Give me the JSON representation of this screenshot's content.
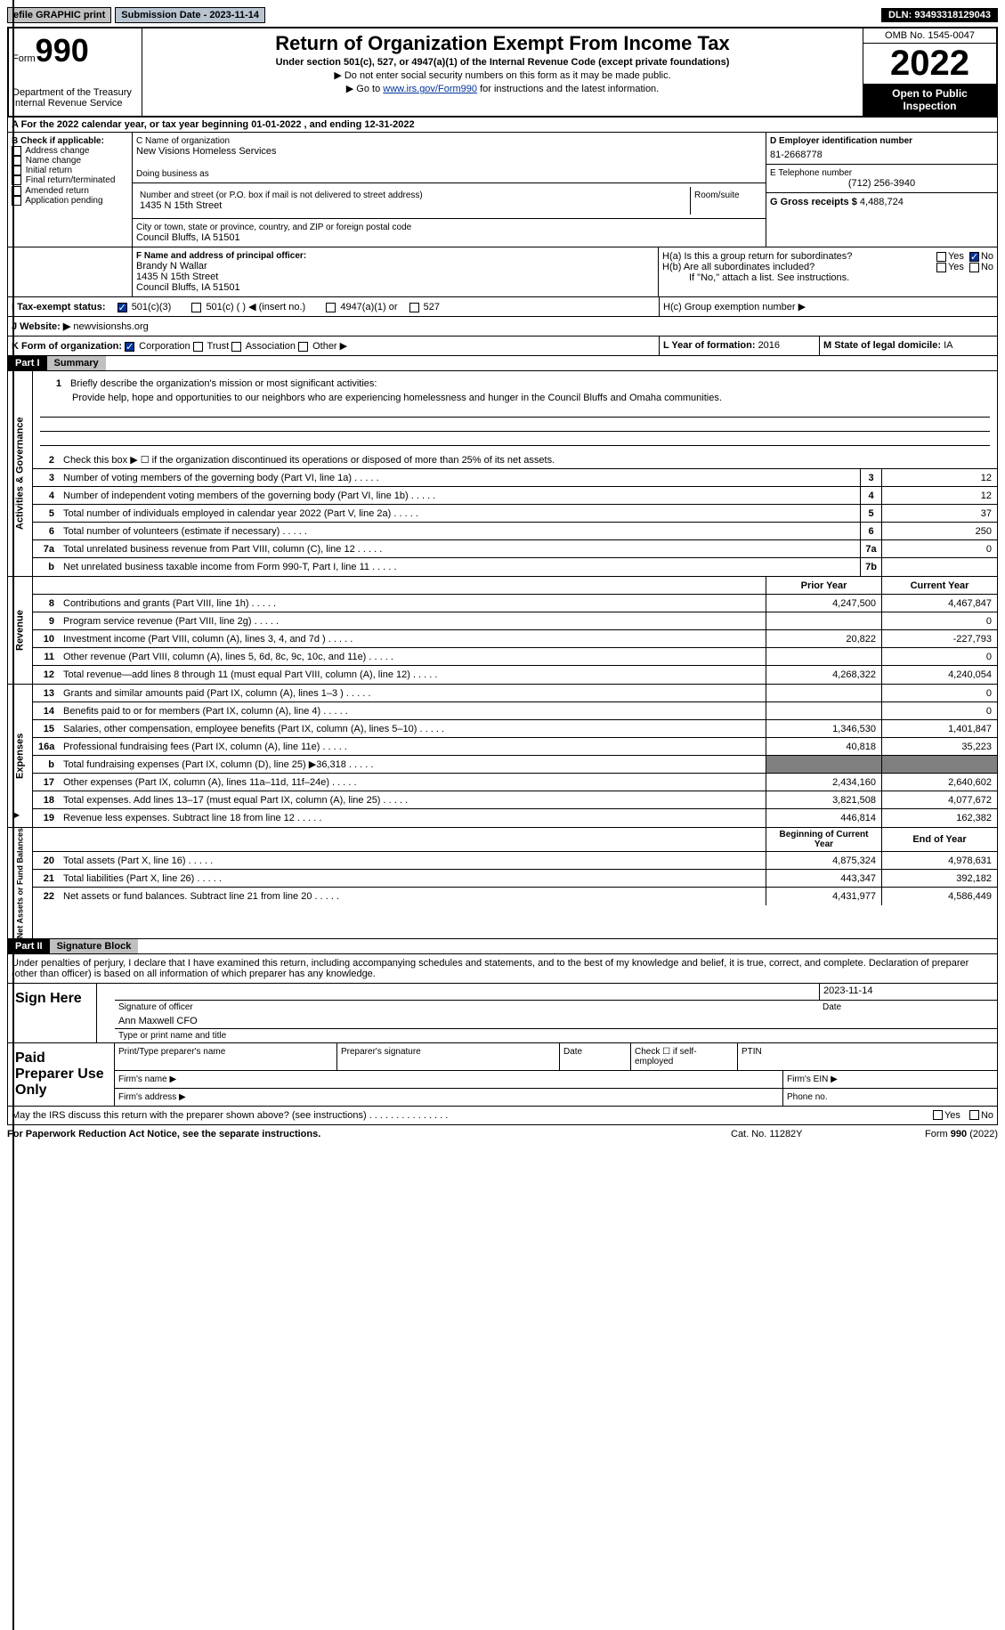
{
  "topbar": {
    "efile_label": "efile GRAPHIC print",
    "submission_label": "Submission Date - 2023-11-14",
    "dln": "DLN: 93493318129043"
  },
  "header": {
    "form_small": "Form",
    "form_big": "990",
    "dept": "Department of the Treasury",
    "irs": "Internal Revenue Service",
    "title": "Return of Organization Exempt From Income Tax",
    "subtitle": "Under section 501(c), 527, or 4947(a)(1) of the Internal Revenue Code (except private foundations)",
    "note1": "▶ Do not enter social security numbers on this form as it may be made public.",
    "note2_pre": "▶ Go to ",
    "note2_link": "www.irs.gov/Form990",
    "note2_post": " for instructions and the latest information.",
    "omb": "OMB No. 1545-0047",
    "year": "2022",
    "inspect": "Open to Public Inspection"
  },
  "tax_year": "A For the 2022 calendar year, or tax year beginning 01-01-2022   , and ending 12-31-2022",
  "sectionB": {
    "label": "B Check if applicable:",
    "opts": [
      "Address change",
      "Name change",
      "Initial return",
      "Final return/terminated",
      "Amended return",
      "Application pending"
    ]
  },
  "sectionC": {
    "name_label": "C Name of organization",
    "name": "New Visions Homeless Services",
    "dba_label": "Doing business as",
    "addr_label": "Number and street (or P.O. box if mail is not delivered to street address)",
    "room_label": "Room/suite",
    "addr": "1435 N 15th Street",
    "city_label": "City or town, state or province, country, and ZIP or foreign postal code",
    "city": "Council Bluffs, IA   51501"
  },
  "sectionD": {
    "label": "D Employer identification number",
    "value": "81-2668778"
  },
  "sectionE": {
    "label": "E Telephone number",
    "value": "(712) 256-3940"
  },
  "sectionG": {
    "label": "G Gross receipts $",
    "value": "4,488,724"
  },
  "sectionF": {
    "label": "F Name and address of principal officer:",
    "name": "Brandy N Wallar",
    "addr1": "1435 N 15th Street",
    "addr2": "Council Bluffs, IA  51501"
  },
  "sectionH": {
    "ha": "H(a)  Is this a group return for subordinates?",
    "hb": "H(b)  Are all subordinates included?",
    "hb_note": "If \"No,\" attach a list. See instructions.",
    "hc": "H(c)  Group exemption number ▶",
    "yes": "Yes",
    "no": "No"
  },
  "sectionI": {
    "label": "I   Tax-exempt status:",
    "opt1": "501(c)(3)",
    "opt2": "501(c) (  ) ◀ (insert no.)",
    "opt3": "4947(a)(1) or",
    "opt4": "527"
  },
  "sectionJ": {
    "label": "J   Website: ▶",
    "value": "newvisionshs.org"
  },
  "sectionK": {
    "label": "K Form of organization:",
    "opts": [
      "Corporation",
      "Trust",
      "Association",
      "Other ▶"
    ]
  },
  "sectionL": {
    "label": "L Year of formation: ",
    "value": "2016"
  },
  "sectionM": {
    "label": "M State of legal domicile: ",
    "value": "IA"
  },
  "part1": {
    "label": "Part I",
    "title": "Summary"
  },
  "summary": {
    "line1_label": "Briefly describe the organization's mission or most significant activities:",
    "line1_text": "Provide help, hope and opportunities to our neighbors who are experiencing homelessness and hunger in the Council Bluffs and Omaha communities.",
    "line2": "Check this box ▶ ☐  if the organization discontinued its operations or disposed of more than 25% of its net assets.",
    "lines_ag": [
      {
        "n": "3",
        "d": "Number of voting members of the governing body (Part VI, line 1a)",
        "box": "3",
        "v": "12"
      },
      {
        "n": "4",
        "d": "Number of independent voting members of the governing body (Part VI, line 1b)",
        "box": "4",
        "v": "12"
      },
      {
        "n": "5",
        "d": "Total number of individuals employed in calendar year 2022 (Part V, line 2a)",
        "box": "5",
        "v": "37"
      },
      {
        "n": "6",
        "d": "Total number of volunteers (estimate if necessary)",
        "box": "6",
        "v": "250"
      },
      {
        "n": "7a",
        "d": "Total unrelated business revenue from Part VIII, column (C), line 12",
        "box": "7a",
        "v": "0"
      },
      {
        "n": "b",
        "d": "Net unrelated business taxable income from Form 990-T, Part I, line 11",
        "box": "7b",
        "v": ""
      }
    ],
    "col_prior": "Prior Year",
    "col_current": "Current Year",
    "revenue": [
      {
        "n": "8",
        "d": "Contributions and grants (Part VIII, line 1h)",
        "p": "4,247,500",
        "c": "4,467,847"
      },
      {
        "n": "9",
        "d": "Program service revenue (Part VIII, line 2g)",
        "p": "",
        "c": "0"
      },
      {
        "n": "10",
        "d": "Investment income (Part VIII, column (A), lines 3, 4, and 7d )",
        "p": "20,822",
        "c": "-227,793"
      },
      {
        "n": "11",
        "d": "Other revenue (Part VIII, column (A), lines 5, 6d, 8c, 9c, 10c, and 11e)",
        "p": "",
        "c": "0"
      },
      {
        "n": "12",
        "d": "Total revenue—add lines 8 through 11 (must equal Part VIII, column (A), line 12)",
        "p": "4,268,322",
        "c": "4,240,054"
      }
    ],
    "expenses": [
      {
        "n": "13",
        "d": "Grants and similar amounts paid (Part IX, column (A), lines 1–3 )",
        "p": "",
        "c": "0"
      },
      {
        "n": "14",
        "d": "Benefits paid to or for members (Part IX, column (A), line 4)",
        "p": "",
        "c": "0"
      },
      {
        "n": "15",
        "d": "Salaries, other compensation, employee benefits (Part IX, column (A), lines 5–10)",
        "p": "1,346,530",
        "c": "1,401,847"
      },
      {
        "n": "16a",
        "d": "Professional fundraising fees (Part IX, column (A), line 11e)",
        "p": "40,818",
        "c": "35,223"
      },
      {
        "n": "b",
        "d": "Total fundraising expenses (Part IX, column (D), line 25) ▶36,318",
        "p": "GRAY",
        "c": "GRAY"
      },
      {
        "n": "17",
        "d": "Other expenses (Part IX, column (A), lines 11a–11d, 11f–24e)",
        "p": "2,434,160",
        "c": "2,640,602"
      },
      {
        "n": "18",
        "d": "Total expenses. Add lines 13–17 (must equal Part IX, column (A), line 25)",
        "p": "3,821,508",
        "c": "4,077,672"
      },
      {
        "n": "19",
        "d": "Revenue less expenses. Subtract line 18 from line 12",
        "p": "446,814",
        "c": "162,382"
      }
    ],
    "col_begin": "Beginning of Current Year",
    "col_end": "End of Year",
    "netassets": [
      {
        "n": "20",
        "d": "Total assets (Part X, line 16)",
        "p": "4,875,324",
        "c": "4,978,631"
      },
      {
        "n": "21",
        "d": "Total liabilities (Part X, line 26)",
        "p": "443,347",
        "c": "392,182"
      },
      {
        "n": "22",
        "d": "Net assets or fund balances. Subtract line 21 from line 20",
        "p": "4,431,977",
        "c": "4,586,449"
      }
    ],
    "vlabels": {
      "ag": "Activities & Governance",
      "rev": "Revenue",
      "exp": "Expenses",
      "na": "Net Assets or Fund Balances"
    }
  },
  "part2": {
    "label": "Part II",
    "title": "Signature Block"
  },
  "sig": {
    "declaration": "Under penalties of perjury, I declare that I have examined this return, including accompanying schedules and statements, and to the best of my knowledge and belief, it is true, correct, and complete. Declaration of preparer (other than officer) is based on all information of which preparer has any knowledge.",
    "sign_here": "Sign Here",
    "sig_officer": "Signature of officer",
    "date": "Date",
    "date_val": "2023-11-14",
    "name_title": "Ann Maxwell CFO",
    "type_name": "Type or print name and title"
  },
  "prep": {
    "label": "Paid Preparer Use Only",
    "print_name": "Print/Type preparer's name",
    "prep_sig": "Preparer's signature",
    "date": "Date",
    "check_self": "Check ☐ if self-employed",
    "ptin": "PTIN",
    "firm_name": "Firm's name    ▶",
    "firm_ein": "Firm's EIN ▶",
    "firm_addr": "Firm's address ▶",
    "phone": "Phone no."
  },
  "footer": {
    "discuss": "May the IRS discuss this return with the preparer shown above? (see instructions)",
    "yes": "Yes",
    "no": "No",
    "paperwork": "For Paperwork Reduction Act Notice, see the separate instructions.",
    "cat": "Cat. No. 11282Y",
    "form": "Form 990 (2022)"
  }
}
